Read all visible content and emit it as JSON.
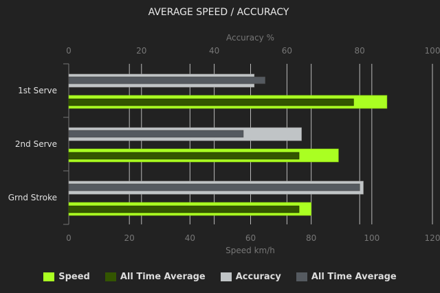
{
  "chart_data": {
    "type": "bar",
    "orientation": "horizontal",
    "title": "AVERAGE SPEED / ACCURACY",
    "categories": [
      "1st Serve",
      "2nd Serve",
      "Grnd Stroke"
    ],
    "x_bottom": {
      "label": "Speed km/h",
      "range": [
        0,
        120
      ],
      "ticks": [
        0,
        20,
        40,
        60,
        80,
        100,
        120
      ]
    },
    "x_top": {
      "label": "Accuracy %",
      "range": [
        0,
        100
      ],
      "ticks": [
        0,
        20,
        40,
        60,
        80,
        100
      ]
    },
    "grid": true,
    "legend_position": "bottom",
    "series": [
      {
        "name": "Speed",
        "axis": "bottom",
        "color": "#aaff22",
        "values": [
          105,
          89,
          80
        ]
      },
      {
        "name": "All Time Average",
        "axis": "bottom",
        "color": "#335500",
        "values": [
          94,
          76,
          76
        ]
      },
      {
        "name": "Accuracy",
        "axis": "top",
        "color": "#c0c4c6",
        "values": [
          51,
          64,
          81
        ]
      },
      {
        "name": "All Time Average",
        "axis": "top",
        "color": "#555a60",
        "values": [
          54,
          48,
          80
        ]
      }
    ]
  }
}
